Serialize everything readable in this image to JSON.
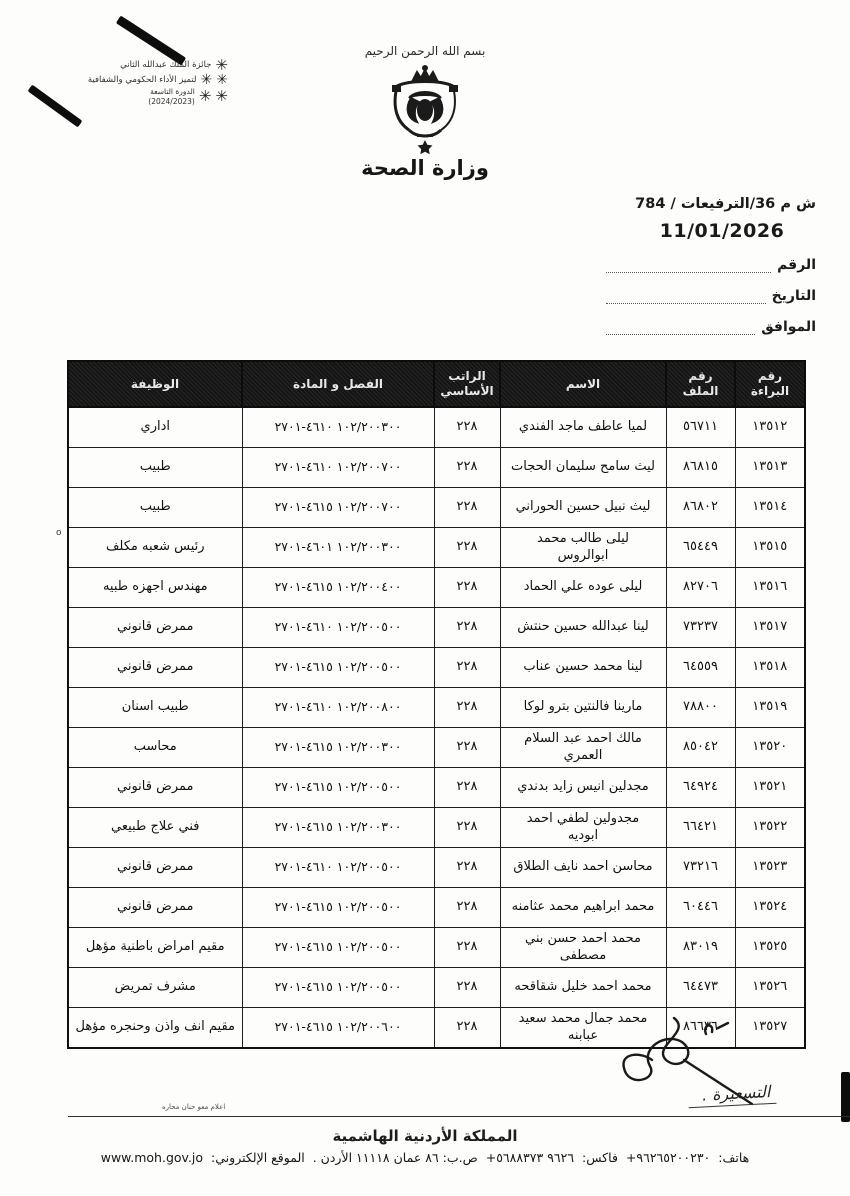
{
  "stamp": {
    "line1": "جائزة الملك عبدالله الثاني",
    "line2": "لتميز الأداء الحكومي والشفافية",
    "line3": "الدورة التاسعة",
    "line4": "(2024/2023)"
  },
  "header": {
    "bismillah": "بسم الله الرحمن الرحيم",
    "ministry": "وزارة الصحة"
  },
  "reference": {
    "ref_line": "ش م 36/الترفيعات / 784",
    "date_value": "11/01/2026",
    "fields": {
      "number_label": "الرقم",
      "date_label": "التاريخ",
      "corresponding_label": "الموافق"
    }
  },
  "table": {
    "headers": [
      "رقم البراءة",
      "رقم الملف",
      "الاسم",
      "الراتب الأساسي",
      "الفصل و المادة",
      "الوظيفة"
    ],
    "column_keys": [
      "decree_no",
      "file_no",
      "name",
      "salary",
      "chapter_article",
      "job"
    ],
    "rows": [
      {
        "decree_no": "١٣٥١٢",
        "file_no": "٥٦٧١١",
        "name": "لميا عاطف ماجد الفندي",
        "salary": "٢٢٨",
        "chapter_article": "١٠٢/٢٠٠٣٠٠ ٤٦١٠-٢٧٠١",
        "job": "اداري"
      },
      {
        "decree_no": "١٣٥١٣",
        "file_no": "٨٦٨١٥",
        "name": "ليث سامح سليمان الحجات",
        "salary": "٢٢٨",
        "chapter_article": "١٠٢/٢٠٠٧٠٠ ٤٦١٠-٢٧٠١",
        "job": "طبيب"
      },
      {
        "decree_no": "١٣٥١٤",
        "file_no": "٨٦٨٠٢",
        "name": "ليث نبيل حسين الحوراني",
        "salary": "٢٢٨",
        "chapter_article": "١٠٢/٢٠٠٧٠٠ ٤٦١٥-٢٧٠١",
        "job": "طبيب"
      },
      {
        "decree_no": "١٣٥١٥",
        "file_no": "٦٥٤٤٩",
        "name": "ليلى طالب محمد ابوالروس",
        "salary": "٢٢٨",
        "chapter_article": "١٠٢/٢٠٠٣٠٠ ٤٦٠١-٢٧٠١",
        "job": "رئيس شعبه مكلف"
      },
      {
        "decree_no": "١٣٥١٦",
        "file_no": "٨٢٧٠٦",
        "name": "ليلى عوده علي الحماد",
        "salary": "٢٢٨",
        "chapter_article": "١٠٢/٢٠٠٤٠٠ ٤٦١٥-٢٧٠١",
        "job": "مهندس اجهزه طبيه"
      },
      {
        "decree_no": "١٣٥١٧",
        "file_no": "٧٣٢٣٧",
        "name": "لينا عبدالله حسين حنتش",
        "salary": "٢٢٨",
        "chapter_article": "١٠٢/٢٠٠٥٠٠ ٤٦١٠-٢٧٠١",
        "job": "ممرض قانوني"
      },
      {
        "decree_no": "١٣٥١٨",
        "file_no": "٦٤٥٥٩",
        "name": "لينا محمد حسين عناب",
        "salary": "٢٢٨",
        "chapter_article": "١٠٢/٢٠٠٥٠٠ ٤٦١٥-٢٧٠١",
        "job": "ممرض قانوني"
      },
      {
        "decree_no": "١٣٥١٩",
        "file_no": "٧٨٨٠٠",
        "name": "مارينا فالنتين بترو لوكا",
        "salary": "٢٢٨",
        "chapter_article": "١٠٢/٢٠٠٨٠٠ ٤٦١٠-٢٧٠١",
        "job": "طبيب اسنان"
      },
      {
        "decree_no": "١٣٥٢٠",
        "file_no": "٨٥٠٤٢",
        "name": "مالك احمد عبد السلام العمري",
        "salary": "٢٢٨",
        "chapter_article": "١٠٢/٢٠٠٣٠٠ ٤٦١٥-٢٧٠١",
        "job": "محاسب"
      },
      {
        "decree_no": "١٣٥٢١",
        "file_no": "٦٤٩٢٤",
        "name": "مجدلين انيس زايد بدندي",
        "salary": "٢٢٨",
        "chapter_article": "١٠٢/٢٠٠٥٠٠ ٤٦١٥-٢٧٠١",
        "job": "ممرض قانوني"
      },
      {
        "decree_no": "١٣٥٢٢",
        "file_no": "٦٦٤٢١",
        "name": "مجدولين لطفي احمد ابوديه",
        "salary": "٢٢٨",
        "chapter_article": "١٠٢/٢٠٠٣٠٠ ٤٦١٥-٢٧٠١",
        "job": "فني علاج طبيعي"
      },
      {
        "decree_no": "١٣٥٢٣",
        "file_no": "٧٣٢١٦",
        "name": "محاسن احمد نايف الطلاق",
        "salary": "٢٢٨",
        "chapter_article": "١٠٢/٢٠٠٥٠٠ ٤٦١٠-٢٧٠١",
        "job": "ممرض قانوني"
      },
      {
        "decree_no": "١٣٥٢٤",
        "file_no": "٦٠٤٤٦",
        "name": "محمد ابراهيم محمد عثامنه",
        "salary": "٢٢٨",
        "chapter_article": "١٠٢/٢٠٠٥٠٠ ٤٦١٥-٢٧٠١",
        "job": "ممرض قانوني"
      },
      {
        "decree_no": "١٣٥٢٥",
        "file_no": "٨٣٠١٩",
        "name": "محمد احمد حسن بني مصطفى",
        "salary": "٢٢٨",
        "chapter_article": "١٠٢/٢٠٠٥٠٠ ٤٦١٥-٢٧٠١",
        "job": "مقيم امراض باطنية مؤهل"
      },
      {
        "decree_no": "١٣٥٢٦",
        "file_no": "٦٤٤٧٣",
        "name": "محمد احمد خليل شقاقحه",
        "salary": "٢٢٨",
        "chapter_article": "١٠٢/٢٠٠٥٠٠ ٤٦١٥-٢٧٠١",
        "job": "مشرف تمريض"
      },
      {
        "decree_no": "١٣٥٢٧",
        "file_no": "٨٦٦٣٦",
        "name": "محمد جمال محمد سعيد عبابنه",
        "salary": "٢٢٨",
        "chapter_article": "١٠٢/٢٠٠٦٠٠ ٤٦١٥-٢٧٠١",
        "job": "مقيم انف واذن وحنجره مؤهل"
      }
    ]
  },
  "signature": {
    "note": "التسعيرة ."
  },
  "footer": {
    "tiny_note": "اعلام معو حنان محاره",
    "kingdom": "المملكة الأردنية الهاشمية",
    "phone_label": "هاتف:",
    "phone": "+٩٦٢٦٥٢٠٠٢٣٠",
    "fax_label": "فاكس:",
    "fax": "+٩٦٢٦ ٥٦٨٨٣٧٣",
    "pobox": "ص.ب: ٨٦ عمان ١١١١٨ الأردن .",
    "site_label": "الموقع الإلكتروني:",
    "site": "www.moh.gov.jo"
  }
}
